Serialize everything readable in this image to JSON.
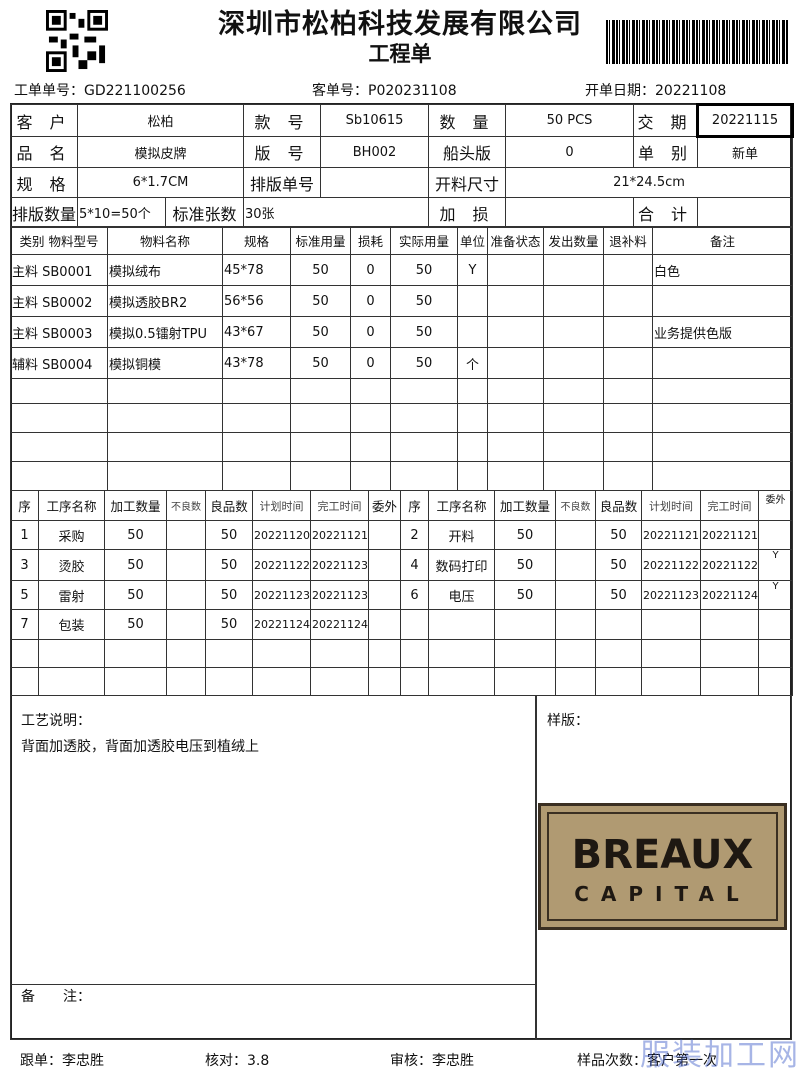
{
  "company": "深圳市松柏科技发展有限公司",
  "doc_title": "工程单",
  "meta": {
    "order_no": "工单单号：GD221100256",
    "customer_order": "客单号：P020231108",
    "open_date": "开单日期：20221108"
  },
  "header": {
    "r1": [
      "客 户",
      "松柏",
      "款 号",
      "Sb10615",
      "数 量",
      "50 PCS",
      "交 期",
      "20221115"
    ],
    "r2": [
      "品 名",
      "模拟皮牌",
      "版 号",
      "BH002",
      "船头版",
      "0",
      "单 别",
      "新单"
    ],
    "r3": [
      "规 格",
      "6*1.7CM",
      "排版单号",
      "",
      "开料尺寸",
      "21*24.5cm"
    ],
    "r4": [
      "排版数量",
      "5*10=50个",
      "标准张数",
      "30张",
      "加 损",
      "",
      "合 计",
      ""
    ]
  },
  "materials": {
    "headers": [
      "类别 物料型号",
      "物料名称",
      "规格",
      "标准用量",
      "损耗",
      "实际用量",
      "单位",
      "准备状态",
      "发出数量",
      "退补料",
      "备注"
    ],
    "rows": [
      [
        "主料 SB0001",
        "模拟绒布",
        "45*78",
        "50",
        "0",
        "50",
        "Y",
        "",
        "",
        "",
        "白色"
      ],
      [
        "主料 SB0002",
        "模拟透胶BR2",
        "56*56",
        "50",
        "0",
        "50",
        "",
        "",
        "",
        "",
        ""
      ],
      [
        "主料 SB0003",
        "模拟0.5镭射TPU",
        "43*67",
        "50",
        "0",
        "50",
        "",
        "",
        "",
        "",
        "业务提供色版"
      ],
      [
        "辅料 SB0004",
        "模拟铜模",
        "43*78",
        "50",
        "0",
        "50",
        "个",
        "",
        "",
        "",
        ""
      ]
    ]
  },
  "processes": {
    "headers": [
      "序",
      "工序名称",
      "加工数量",
      "不良数",
      "良品数",
      "计划时间",
      "完工时间",
      "委外",
      "序",
      "工序名称",
      "加工数量",
      "不良数",
      "良品数",
      "计划时间",
      "完工时间",
      "委外"
    ],
    "rows": [
      [
        "1",
        "采购",
        "50",
        "",
        "50",
        "20221120",
        "20221121",
        "",
        "2",
        "开料",
        "50",
        "",
        "50",
        "20221121",
        "20221121",
        ""
      ],
      [
        "3",
        "烫胶",
        "50",
        "",
        "50",
        "20221122",
        "20221123",
        "",
        "4",
        "数码打印",
        "50",
        "",
        "50",
        "20221122",
        "20221122",
        "Y"
      ],
      [
        "5",
        "雷射",
        "50",
        "",
        "50",
        "20221123",
        "20221123",
        "",
        "6",
        "电压",
        "50",
        "",
        "50",
        "20221123",
        "20221124",
        "Y"
      ],
      [
        "7",
        "包装",
        "50",
        "",
        "50",
        "20221124",
        "20221124",
        "",
        "",
        "",
        "",
        "",
        "",
        "",
        "",
        ""
      ]
    ]
  },
  "notes": {
    "label": "工艺说明：",
    "text": "背面加透胶，背面加透胶电压到植绒上",
    "remark_label": "备　　注：",
    "sample_label": "样版：",
    "logo_text": "BREAUX CAPITAL"
  },
  "footer": {
    "follow": "跟单：李忠胜",
    "check": "核对：3.8",
    "audit": "审核：李忠胜",
    "sample_count": "样品次数：客户第一次"
  },
  "watermark": "服装加工网"
}
